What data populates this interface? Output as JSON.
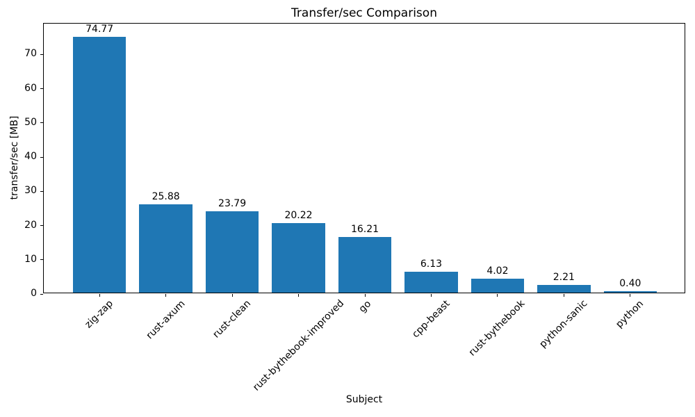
{
  "chart_data": {
    "type": "bar",
    "title": "Transfer/sec Comparison",
    "xlabel": "Subject",
    "ylabel": "transfer/sec [MB]",
    "categories": [
      "zig-zap",
      "rust-axum",
      "rust-clean",
      "rust-bythebook-improved",
      "go",
      "cpp-beast",
      "rust-bythebook",
      "python-sanic",
      "python"
    ],
    "values": [
      74.77,
      25.88,
      23.79,
      20.22,
      16.21,
      6.13,
      4.02,
      2.21,
      0.4
    ],
    "bar_labels": [
      "74.77",
      "25.88",
      "23.79",
      "20.22",
      "16.21",
      "6.13",
      "4.02",
      "2.21",
      "0.40"
    ],
    "yticks": [
      0,
      10,
      20,
      30,
      40,
      50,
      60,
      70
    ],
    "ylim": [
      0,
      79
    ],
    "bar_color": "#1f77b4",
    "grid": false,
    "legend": "none",
    "xtick_rotation": 45
  }
}
